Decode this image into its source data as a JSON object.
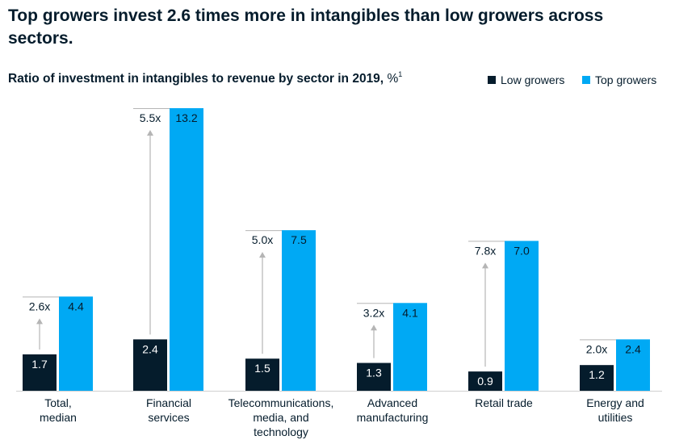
{
  "chart_data": {
    "type": "bar",
    "title": "Top growers invest 2.6 times more in intangibles than low growers across sectors.",
    "subtitle": "Ratio of investment in intangibles to revenue by sector in 2019,",
    "subtitle_unit": "%",
    "subtitle_footnote": "1",
    "categories": [
      [
        "Total,",
        "median"
      ],
      [
        "Financial",
        "services"
      ],
      [
        "Telecommunications,",
        "media, and",
        "technology"
      ],
      [
        "Advanced",
        "manufacturing"
      ],
      [
        "Retail trade"
      ],
      [
        "Energy and",
        "utilities"
      ]
    ],
    "series": [
      {
        "name": "Low growers",
        "color": "#051c2c",
        "values": [
          1.7,
          2.4,
          1.5,
          1.3,
          0.9,
          1.2
        ],
        "labels": [
          "1.7",
          "2.4",
          "1.5",
          "1.3",
          "0.9",
          "1.2"
        ]
      },
      {
        "name": "Top growers",
        "color": "#00a9f4",
        "values": [
          4.4,
          13.2,
          7.5,
          4.1,
          7.0,
          2.4
        ],
        "labels": [
          "4.4",
          "13.2",
          "7.5",
          "4.1",
          "7.0",
          "2.4"
        ]
      }
    ],
    "multipliers": [
      "2.6x",
      "5.5x",
      "5.0x",
      "3.2x",
      "7.8x",
      "2.0x"
    ],
    "ylim": [
      0,
      13.2
    ],
    "legend_position": "top-right",
    "grid": false
  }
}
